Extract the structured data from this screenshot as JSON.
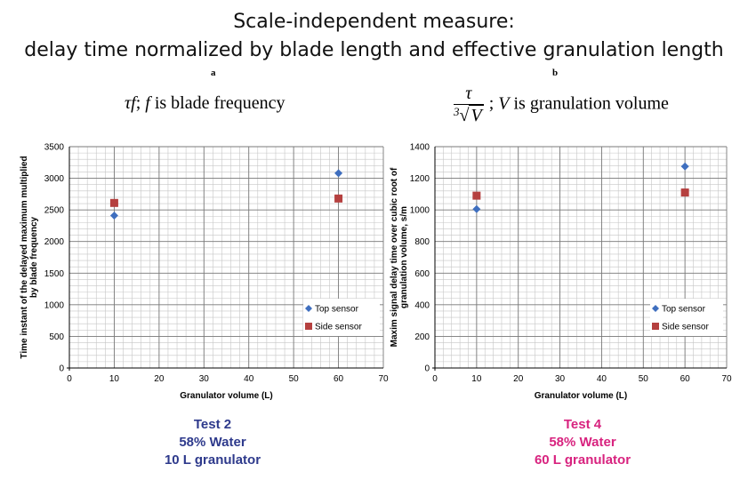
{
  "header": {
    "title_line1": "Scale-independent measure:",
    "title_line2": "delay time normalized by blade length and effective granulation length"
  },
  "panels": [
    {
      "letter": "a",
      "formula_text": "τf ; f is blade frequency",
      "formula_var": "τf",
      "formula_rest": " is blade frequency",
      "formula_f": "f",
      "caption": [
        "Test 2",
        "58% Water",
        "10 L granulator"
      ],
      "caption_color": "#2e3a8c"
    },
    {
      "letter": "b",
      "formula_num": "τ",
      "formula_den_root": "3",
      "formula_den_var": "V",
      "formula_var": "V",
      "formula_rest": " is granulation volume",
      "caption": [
        "Test 4",
        "58% Water",
        "60 L  granulator"
      ],
      "caption_color": "#d8237f"
    }
  ],
  "chart_data": [
    {
      "type": "scatter",
      "xlabel": "Granulator volume  (L)",
      "ylabel": [
        "Time instant of the delayed maximum multiplied",
        "by blade frequency"
      ],
      "xlim": [
        0,
        70
      ],
      "ylim": [
        0,
        3500
      ],
      "xticks": [
        0,
        10,
        20,
        30,
        40,
        50,
        60,
        70
      ],
      "yticks": [
        0,
        500,
        1000,
        1500,
        2000,
        2500,
        3000,
        3500
      ],
      "grid": true,
      "legend_position": "bottom-right",
      "series": [
        {
          "name": "Top sensor",
          "marker": "diamond",
          "color": "#3f6fbf",
          "x": [
            10,
            60
          ],
          "y": [
            2410,
            3080
          ]
        },
        {
          "name": "Side sensor",
          "marker": "square",
          "color": "#b5403f",
          "x": [
            10,
            60
          ],
          "y": [
            2610,
            2680
          ]
        }
      ]
    },
    {
      "type": "scatter",
      "xlabel": "Granulator volume  (L)",
      "ylabel": [
        "Maxim signal delay time over cubic root of",
        "granulation volume, s/m"
      ],
      "xlim": [
        0,
        70
      ],
      "ylim": [
        0,
        1400
      ],
      "xticks": [
        0,
        10,
        20,
        30,
        40,
        50,
        60,
        70
      ],
      "yticks": [
        0,
        200,
        400,
        600,
        800,
        1000,
        1200,
        1400
      ],
      "grid": true,
      "legend_position": "bottom-right",
      "series": [
        {
          "name": "Top sensor",
          "marker": "diamond",
          "color": "#3f6fbf",
          "x": [
            10,
            60
          ],
          "y": [
            1005,
            1275
          ]
        },
        {
          "name": "Side sensor",
          "marker": "square",
          "color": "#b5403f",
          "x": [
            10,
            60
          ],
          "y": [
            1090,
            1110
          ]
        }
      ]
    }
  ]
}
